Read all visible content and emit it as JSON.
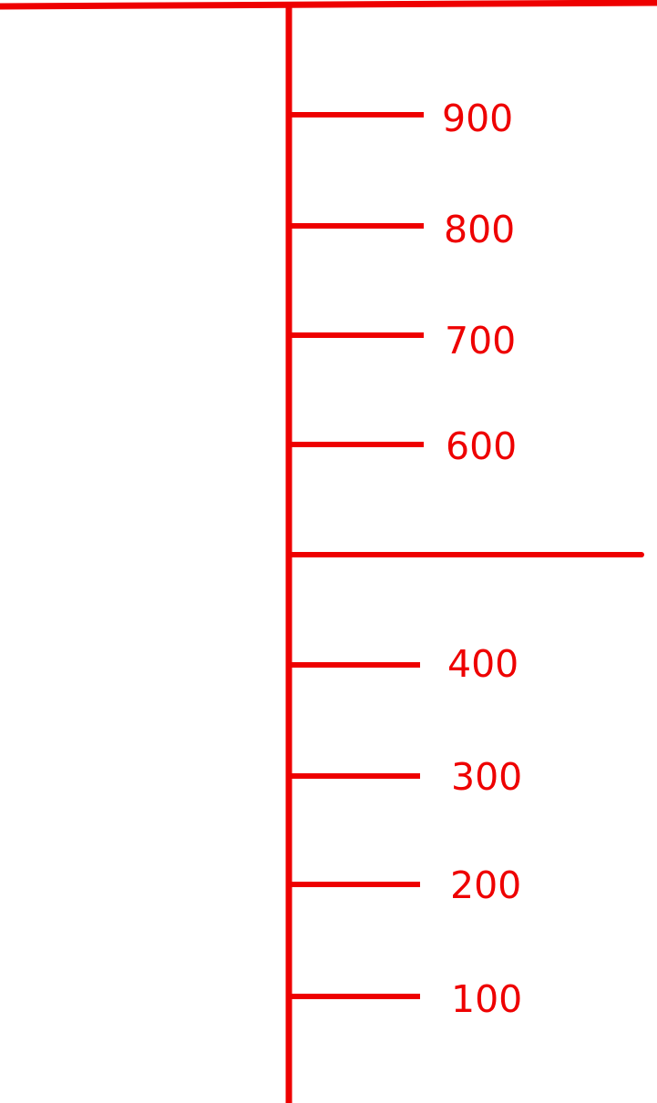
{
  "diagram": {
    "type": "number-scale",
    "color": "#ee0000",
    "orientation": "vertical",
    "min": 0,
    "max": 1000,
    "labels": [
      "900",
      "800",
      "700",
      "600",
      "400",
      "300",
      "200",
      "100"
    ],
    "unlabeled_marks": [
      "500"
    ]
  }
}
